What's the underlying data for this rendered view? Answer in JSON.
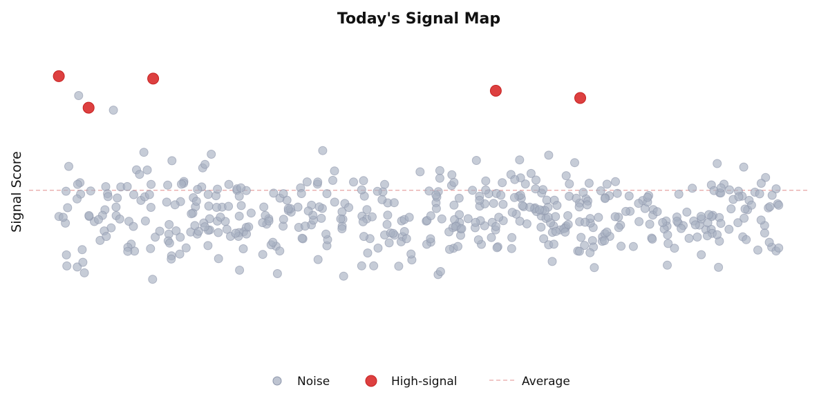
{
  "chart_data": {
    "type": "scatter",
    "title": "Today's Signal Map",
    "xlabel": "",
    "ylabel": "Signal Score",
    "grid": false,
    "legend_placement": "bottom-center",
    "colors": {
      "noise": "#a8b0c2",
      "signal": "#d92b2b",
      "average": "#e6a3a3"
    },
    "legend": [
      {
        "key": "noise",
        "label": "Noise"
      },
      {
        "key": "signal",
        "label": "High-signal"
      },
      {
        "key": "average",
        "label": "Average"
      }
    ],
    "series": [
      {
        "name": "High-signal",
        "points": [
          {
            "x": 1,
            "y": 95
          },
          {
            "x": 7,
            "y": 82
          },
          {
            "x": 20,
            "y": 94
          },
          {
            "x": 89,
            "y": 89
          },
          {
            "x": 106,
            "y": 86
          }
        ]
      },
      {
        "name": "Noise",
        "seed": 7,
        "count": 480,
        "x_range": [
          1,
          146
        ],
        "y_range": [
          13,
          63
        ],
        "extra_points": [
          {
            "x": 5,
            "y": 87
          },
          {
            "x": 12,
            "y": 81
          }
        ]
      }
    ],
    "average": 48,
    "xlim": [
      -5,
      152
    ],
    "ylim": [
      -20,
      115
    ]
  }
}
